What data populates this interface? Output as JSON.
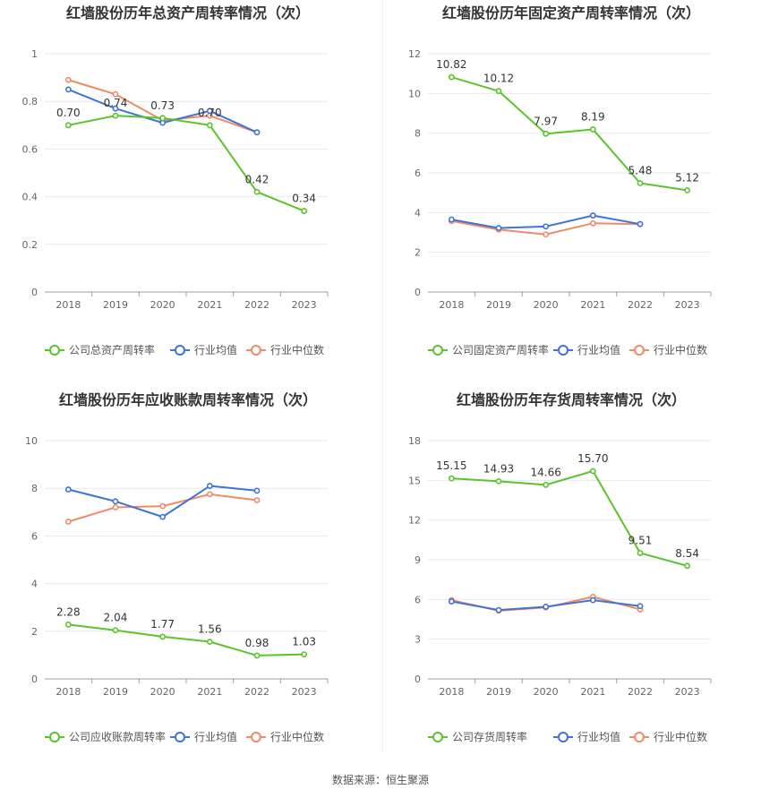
{
  "source_label": "数据来源：恒生聚源",
  "colors": {
    "company": "#5ac42a",
    "avg": "#3f73d8",
    "median": "#f08a67"
  },
  "chart_data": [
    {
      "id": "chart-tl",
      "type": "line",
      "title": "红墙股份历年总资产周转率情况（次）",
      "categories": [
        "2018",
        "2019",
        "2020",
        "2021",
        "2022",
        "2023"
      ],
      "ylim": [
        0,
        1
      ],
      "yticks": [
        0,
        0.2,
        0.4,
        0.6,
        0.8,
        1
      ],
      "ytick_labels": [
        "0",
        "0.2",
        "0.4",
        "0.6",
        "0.8",
        "1"
      ],
      "legend_position": "bottom",
      "series": [
        {
          "name": "公司总资产周转率",
          "color": "#5ac42a",
          "values": [
            0.7,
            0.74,
            0.73,
            0.7,
            0.42,
            0.34
          ],
          "labels": [
            "0.70",
            "0.74",
            "0.73",
            "0.70",
            "0.42",
            "0.34"
          ]
        },
        {
          "name": "行业均值",
          "color": "#3f73d8",
          "values": [
            0.85,
            0.77,
            0.71,
            0.76,
            0.67,
            null
          ]
        },
        {
          "name": "行业中位数",
          "color": "#f08a67",
          "values": [
            0.89,
            0.83,
            0.72,
            0.74,
            0.67,
            null
          ]
        }
      ]
    },
    {
      "id": "chart-tr",
      "type": "line",
      "title": "红墙股份历年固定资产周转率情况（次）",
      "categories": [
        "2018",
        "2019",
        "2020",
        "2021",
        "2022",
        "2023"
      ],
      "ylim": [
        0,
        12
      ],
      "yticks": [
        0,
        2,
        4,
        6,
        8,
        10,
        12
      ],
      "ytick_labels": [
        "0",
        "2",
        "4",
        "6",
        "8",
        "10",
        "12"
      ],
      "legend_position": "bottom",
      "series": [
        {
          "name": "公司固定资产周转率",
          "color": "#5ac42a",
          "values": [
            10.82,
            10.12,
            7.97,
            8.19,
            5.48,
            5.12
          ],
          "labels": [
            "10.82",
            "10.12",
            "7.97",
            "8.19",
            "5.48",
            "5.12"
          ]
        },
        {
          "name": "行业均值",
          "color": "#3f73d8",
          "values": [
            3.65,
            3.22,
            3.3,
            3.85,
            3.42,
            null
          ]
        },
        {
          "name": "行业中位数",
          "color": "#f08a67",
          "values": [
            3.57,
            3.14,
            2.9,
            3.46,
            3.42,
            null
          ]
        }
      ]
    },
    {
      "id": "chart-bl",
      "type": "line",
      "title": "红墙股份历年应收账款周转率情况（次）",
      "categories": [
        "2018",
        "2019",
        "2020",
        "2021",
        "2022",
        "2023"
      ],
      "ylim": [
        0,
        10
      ],
      "yticks": [
        0,
        2,
        4,
        6,
        8,
        10
      ],
      "ytick_labels": [
        "0",
        "2",
        "4",
        "6",
        "8",
        "10"
      ],
      "legend_position": "bottom",
      "series": [
        {
          "name": "公司应收账款周转率",
          "color": "#5ac42a",
          "values": [
            2.28,
            2.04,
            1.77,
            1.56,
            0.98,
            1.03
          ],
          "labels": [
            "2.28",
            "2.04",
            "1.77",
            "1.56",
            "0.98",
            "1.03"
          ]
        },
        {
          "name": "行业均值",
          "color": "#3f73d8",
          "values": [
            7.95,
            7.45,
            6.8,
            8.1,
            7.9,
            null
          ]
        },
        {
          "name": "行业中位数",
          "color": "#f08a67",
          "values": [
            6.6,
            7.2,
            7.25,
            7.75,
            7.5,
            null
          ]
        }
      ]
    },
    {
      "id": "chart-br",
      "type": "line",
      "title": "红墙股份历年存货周转率情况（次）",
      "categories": [
        "2018",
        "2019",
        "2020",
        "2021",
        "2022",
        "2023"
      ],
      "ylim": [
        0,
        18
      ],
      "yticks": [
        0,
        3,
        6,
        9,
        12,
        15,
        18
      ],
      "ytick_labels": [
        "0",
        "3",
        "6",
        "9",
        "12",
        "15",
        "18"
      ],
      "legend_position": "bottom",
      "series": [
        {
          "name": "公司存货周转率",
          "color": "#5ac42a",
          "values": [
            15.15,
            14.93,
            14.66,
            15.7,
            9.51,
            8.54
          ],
          "labels": [
            "15.15",
            "14.93",
            "14.66",
            "15.70",
            "9.51",
            "8.54"
          ]
        },
        {
          "name": "行业均值",
          "color": "#3f73d8",
          "values": [
            5.85,
            5.2,
            5.45,
            5.95,
            5.5,
            null
          ]
        },
        {
          "name": "行业中位数",
          "color": "#f08a67",
          "values": [
            5.95,
            5.15,
            5.4,
            6.2,
            5.25,
            null
          ]
        }
      ]
    }
  ]
}
